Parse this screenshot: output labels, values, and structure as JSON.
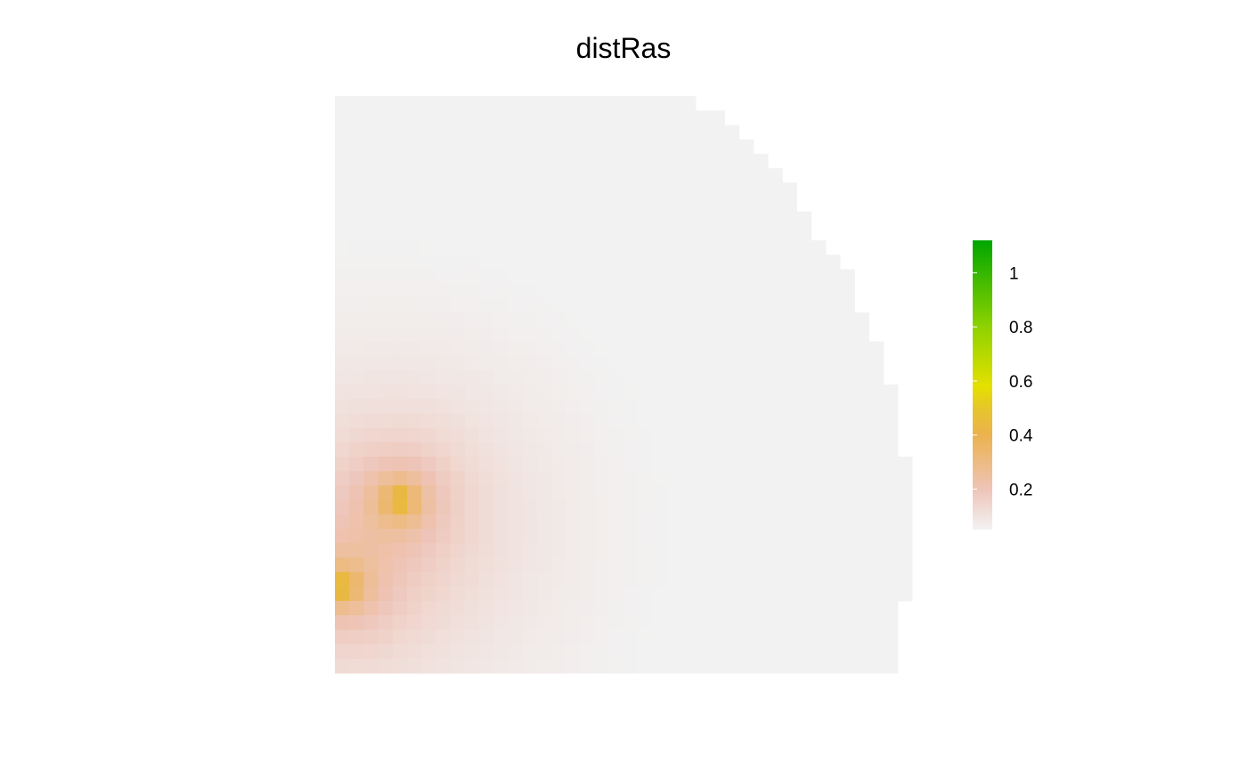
{
  "chart_data": {
    "type": "heatmap",
    "title": "distRas",
    "xlabel": "",
    "ylabel": "",
    "grid": false,
    "legend_placement": "right",
    "raster": {
      "ncol": 40,
      "nrow": 40,
      "peaks": [
        [
          4,
          27.5
        ],
        [
          0,
          33.5
        ]
      ],
      "peak_value": 1.1,
      "extent_by_row": [
        {
          "row_from": 0,
          "row_to": 0,
          "last_col": 24
        },
        {
          "row_from": 1,
          "row_to": 1,
          "last_col": 26
        },
        {
          "row_from": 2,
          "row_to": 2,
          "last_col": 27
        },
        {
          "row_from": 3,
          "row_to": 3,
          "last_col": 28
        },
        {
          "row_from": 4,
          "row_to": 4,
          "last_col": 29
        },
        {
          "row_from": 5,
          "row_to": 5,
          "last_col": 30
        },
        {
          "row_from": 6,
          "row_to": 7,
          "last_col": 31
        },
        {
          "row_from": 8,
          "row_to": 9,
          "last_col": 32
        },
        {
          "row_from": 10,
          "row_to": 10,
          "last_col": 33
        },
        {
          "row_from": 11,
          "row_to": 11,
          "last_col": 34
        },
        {
          "row_from": 12,
          "row_to": 14,
          "last_col": 35
        },
        {
          "row_from": 15,
          "row_to": 16,
          "last_col": 36
        },
        {
          "row_from": 17,
          "row_to": 19,
          "last_col": 37
        },
        {
          "row_from": 20,
          "row_to": 24,
          "last_col": 38
        },
        {
          "row_from": 25,
          "row_to": 34,
          "last_col": 39
        },
        {
          "row_from": 35,
          "row_to": 39,
          "last_col": 38
        }
      ]
    },
    "color_scale": {
      "range": [
        0.05,
        1.12
      ],
      "stops": [
        {
          "value": 0.05,
          "color": "#f2f2f2"
        },
        {
          "value": 0.2,
          "color": "#eec4b8"
        },
        {
          "value": 0.4,
          "color": "#ebb24e"
        },
        {
          "value": 0.5,
          "color": "#e6c62a"
        },
        {
          "value": 0.58,
          "color": "#e5e000"
        },
        {
          "value": 0.8,
          "color": "#8ed200"
        },
        {
          "value": 1.12,
          "color": "#00a600"
        }
      ],
      "ticks": [
        {
          "value": 0.2,
          "label": "0.2"
        },
        {
          "value": 0.4,
          "label": "0.4"
        },
        {
          "value": 0.6,
          "label": "0.6"
        },
        {
          "value": 0.8,
          "label": "0.8"
        },
        {
          "value": 1.0,
          "label": "1"
        }
      ]
    }
  }
}
